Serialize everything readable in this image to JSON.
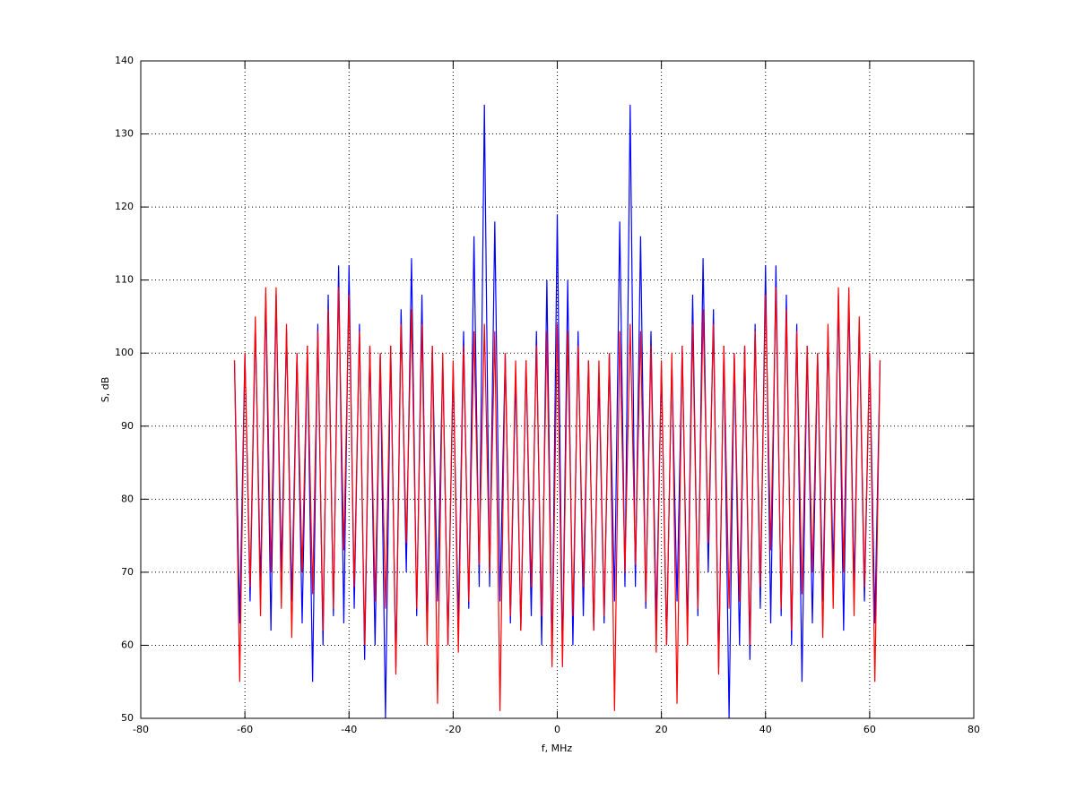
{
  "chart_data": {
    "type": "line",
    "xlabel": "f, MHz",
    "ylabel": "S, dB",
    "x": [
      -62,
      -61,
      -60,
      -59,
      -58,
      -57,
      -56,
      -55,
      -54,
      -53,
      -52,
      -51,
      -50,
      -49,
      -48,
      -47,
      -46,
      -45,
      -44,
      -43,
      -42,
      -41,
      -40,
      -39,
      -38,
      -37,
      -36,
      -35,
      -34,
      -33,
      -32,
      -31,
      -30,
      -29,
      -28,
      -27,
      -26,
      -25,
      -24,
      -23,
      -22,
      -21,
      -20,
      -19,
      -18,
      -17,
      -16,
      -15,
      -14,
      -13,
      -12,
      -11,
      -10,
      -9,
      -8,
      -7,
      -6,
      -5,
      -4,
      -3,
      -2,
      -1,
      0,
      1,
      2,
      3,
      4,
      5,
      6,
      7,
      8,
      9,
      10,
      11,
      12,
      13,
      14,
      15,
      16,
      17,
      18,
      19,
      20,
      21,
      22,
      23,
      24,
      25,
      26,
      27,
      28,
      29,
      30,
      31,
      32,
      33,
      34,
      35,
      36,
      37,
      38,
      39,
      40,
      41,
      42,
      43,
      44,
      45,
      46,
      47,
      48,
      49,
      50,
      51,
      52,
      53,
      54,
      55,
      56,
      57,
      58,
      59,
      60,
      61,
      62
    ],
    "series": [
      {
        "color": "#0000ff",
        "values": [
          99,
          63,
          100,
          66,
          104,
          68,
          108,
          62,
          108,
          70,
          103,
          66,
          100,
          63,
          101,
          55,
          104,
          60,
          108,
          64,
          112,
          63,
          112,
          65,
          104,
          58,
          101,
          60,
          100,
          50,
          101,
          57,
          106,
          70,
          113,
          64,
          108,
          62,
          101,
          66,
          99,
          60,
          98,
          63,
          103,
          65,
          116,
          68,
          134,
          68,
          118,
          66,
          100,
          63,
          97,
          62,
          99,
          64,
          103,
          60,
          110,
          58,
          119,
          58,
          110,
          60,
          103,
          64,
          99,
          62,
          97,
          63,
          100,
          66,
          118,
          68,
          134,
          68,
          116,
          65,
          103,
          63,
          98,
          60,
          99,
          66,
          101,
          62,
          108,
          64,
          113,
          70,
          106,
          57,
          101,
          50,
          100,
          60,
          101,
          58,
          104,
          65,
          112,
          63,
          112,
          64,
          108,
          60,
          104,
          55,
          101,
          63,
          100,
          66,
          103,
          70,
          108,
          62,
          108,
          68,
          104,
          66,
          100,
          63,
          99
        ]
      },
      {
        "color": "#ff0000",
        "values": [
          99,
          55,
          100,
          68,
          105,
          64,
          109,
          70,
          109,
          65,
          104,
          61,
          100,
          70,
          101,
          67,
          103,
          62,
          106,
          65,
          109,
          73,
          108,
          68,
          103,
          60,
          101,
          66,
          100,
          65,
          101,
          56,
          104,
          74,
          106,
          65,
          104,
          60,
          101,
          52,
          100,
          60,
          99,
          59,
          101,
          66,
          103,
          71,
          104,
          70,
          103,
          51,
          100,
          64,
          99,
          62,
          99,
          68,
          101,
          64,
          103,
          57,
          104,
          57,
          103,
          64,
          101,
          68,
          99,
          62,
          99,
          64,
          100,
          51,
          103,
          70,
          104,
          71,
          103,
          66,
          101,
          59,
          99,
          60,
          100,
          52,
          101,
          60,
          104,
          65,
          106,
          74,
          104,
          56,
          101,
          65,
          100,
          66,
          101,
          60,
          103,
          68,
          108,
          73,
          109,
          65,
          106,
          62,
          103,
          67,
          101,
          70,
          100,
          61,
          104,
          65,
          109,
          70,
          109,
          64,
          105,
          68,
          100,
          55,
          99
        ]
      }
    ],
    "xlim": [
      -80,
      80
    ],
    "xticks": [
      -80,
      -60,
      -40,
      -20,
      0,
      20,
      40,
      60,
      80
    ],
    "ylim": [
      50,
      140
    ],
    "yticks": [
      50,
      60,
      70,
      80,
      90,
      100,
      110,
      120,
      130,
      140
    ],
    "grid": true
  }
}
